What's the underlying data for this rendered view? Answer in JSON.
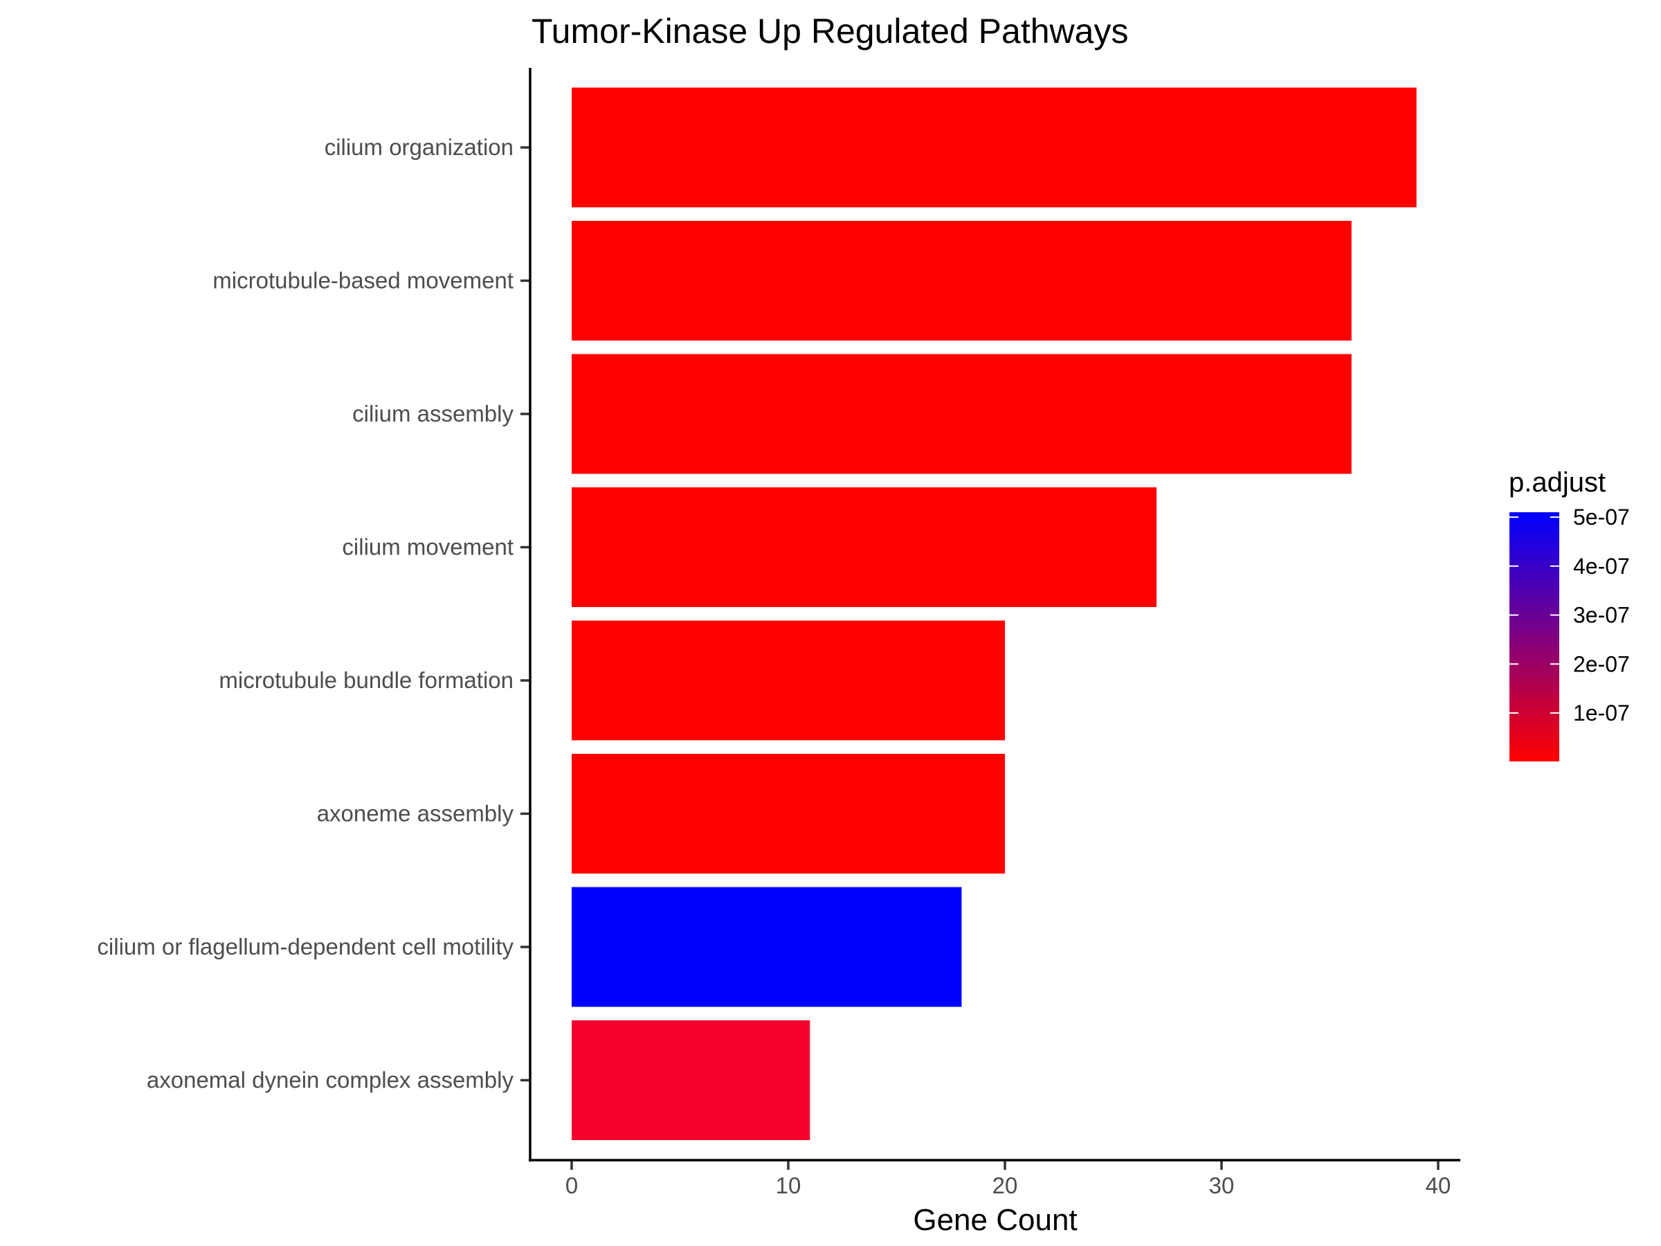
{
  "chart_data": {
    "type": "bar",
    "orientation": "horizontal",
    "title": "Tumor-Kinase Up Regulated Pathways",
    "xlabel": "Gene Count",
    "ylabel": "",
    "xlim": [
      -2,
      41
    ],
    "x_ticks": [
      0,
      10,
      20,
      30,
      40
    ],
    "grid": false,
    "categories": [
      "cilium organization",
      "microtubule-based movement",
      "cilium assembly",
      "cilium movement",
      "microtubule bundle formation",
      "axoneme assembly",
      "cilium or flagellum-dependent cell motility",
      "axonemal dynein complex assembly"
    ],
    "values": [
      39,
      36,
      36,
      27,
      20,
      20,
      18,
      11
    ],
    "p_adjust": [
      1e-09,
      2e-09,
      3e-09,
      4e-09,
      5e-09,
      6e-09,
      5.1e-07,
      3.5e-08
    ],
    "colors": [
      "#ff0000",
      "#ff0000",
      "#ff0000",
      "#ff0000",
      "#ff0000",
      "#ff0000",
      "#0000ff",
      "#f5032d"
    ],
    "legend": {
      "title": "p.adjust",
      "placement": "right",
      "low_color": "#ff0000",
      "high_color": "#0000ff",
      "range": [
        1e-09,
        5.1e-07
      ],
      "ticks": [
        5e-07,
        4e-07,
        3e-07,
        2e-07,
        1e-07
      ],
      "tick_labels": [
        "5e-07",
        "4e-07",
        "3e-07",
        "2e-07",
        "1e-07"
      ]
    }
  }
}
